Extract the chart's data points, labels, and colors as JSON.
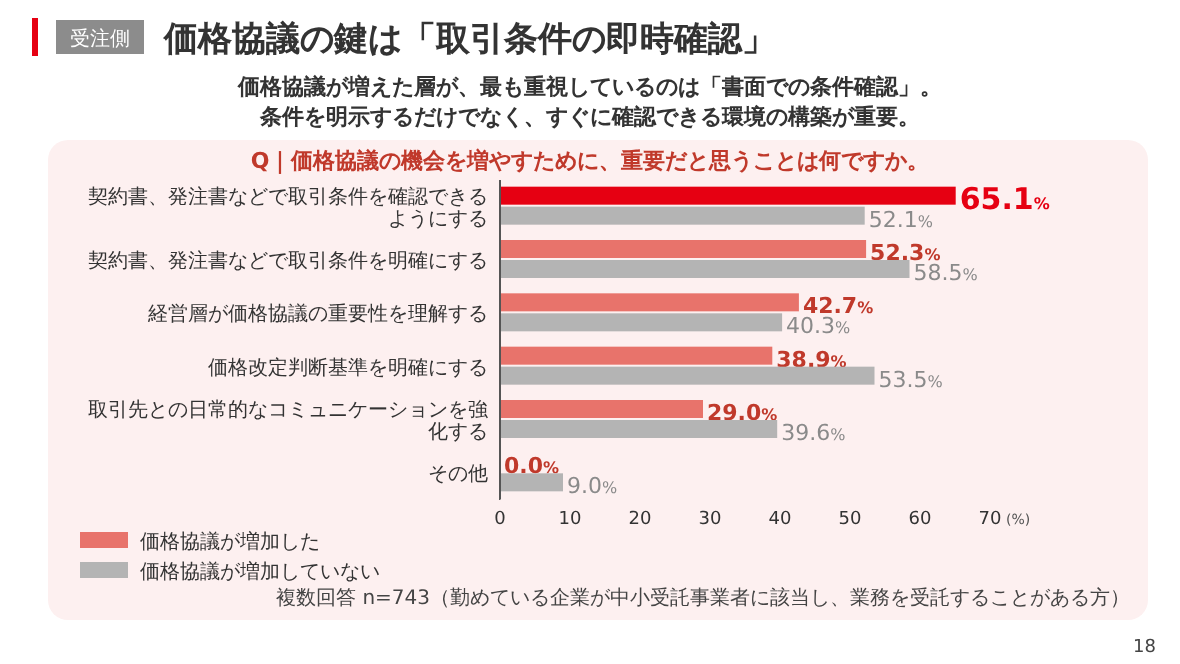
{
  "chart_data": {
    "type": "bar",
    "orientation": "horizontal",
    "title": "価格協議の鍵は「取引条件の即時確認」",
    "subtitle": "価格協議が増えた層が、最も重視しているのは「書面での条件確認」。条件を明示するだけでなく、すぐに確認できる環境の構築が重要。",
    "annotations": [
      "受注側",
      "Q｜価格協議の機会を増やすために、重要だと思うことは何ですか。",
      "複数回答 n=743（勤めている企業が中小受託事業者に該当し、業務を受託することがある方）",
      "18"
    ],
    "xlabel": "(%)",
    "categories": [
      "契約書、発注書などで取引条件を確認できるようにする",
      "契約書、発注書などで取引条件を明確にする",
      "経営層が価格協議の重要性を理解する",
      "価格改定判断基準を明確にする",
      "取引先との日常的なコミュニケーションを強化する",
      "その他"
    ],
    "series": [
      {
        "name": "価格協議が増加した",
        "color": "#e8736b",
        "colors": [
          "#e60012",
          "#e8736b",
          "#e8736b",
          "#e8736b",
          "#e8736b",
          "#e8736b"
        ],
        "values": [
          65.1,
          52.3,
          42.7,
          38.9,
          29.0,
          0.0
        ],
        "value_labels": [
          "65.1%",
          "52.3%",
          "42.7%",
          "38.9%",
          "29.0%",
          "0.0%"
        ]
      },
      {
        "name": "価格協議が増加していない",
        "color": "#b4b4b4",
        "values": [
          52.1,
          58.5,
          40.3,
          53.5,
          39.6,
          9.0
        ],
        "value_labels": [
          "52.1%",
          "58.5%",
          "40.3%",
          "53.5%",
          "39.6%",
          "9.0%"
        ]
      }
    ],
    "xlim": [
      0,
      70
    ],
    "xticks": [
      0,
      10,
      20,
      30,
      40,
      50,
      60,
      70
    ],
    "legend": "bottom left"
  }
}
